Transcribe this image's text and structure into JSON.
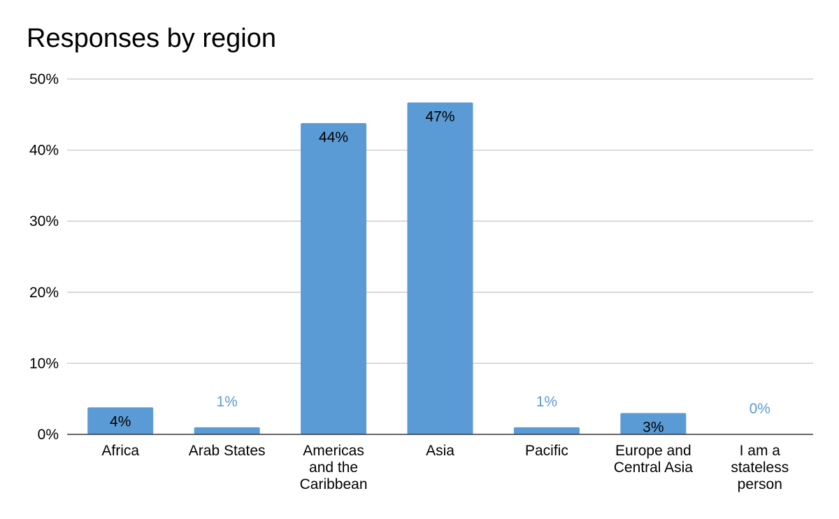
{
  "chart_data": {
    "type": "bar",
    "title": "Responses by region",
    "xlabel": "",
    "ylabel": "",
    "categories": [
      [
        "Africa"
      ],
      [
        "Arab States"
      ],
      [
        "Americas",
        "and the",
        "Caribbean"
      ],
      [
        "Asia"
      ],
      [
        "Pacific"
      ],
      [
        "Europe and",
        "Central Asia"
      ],
      [
        "I am a",
        "stateless",
        "person"
      ]
    ],
    "values": [
      3.8,
      1.0,
      43.8,
      46.7,
      1.0,
      3.0,
      0.0
    ],
    "data_labels": [
      "4%",
      "1%",
      "44%",
      "47%",
      "1%",
      "3%",
      "0%"
    ],
    "ylim": [
      0,
      50
    ],
    "yticks": [
      "0%",
      "10%",
      "20%",
      "30%",
      "40%",
      "50%"
    ],
    "grid": true,
    "colors": {
      "bar": "#5b9bd5",
      "label_outside": "#5b9bd5",
      "label_inside": "#000000",
      "grid": "#c8c8c8",
      "axis": "#333333"
    }
  }
}
